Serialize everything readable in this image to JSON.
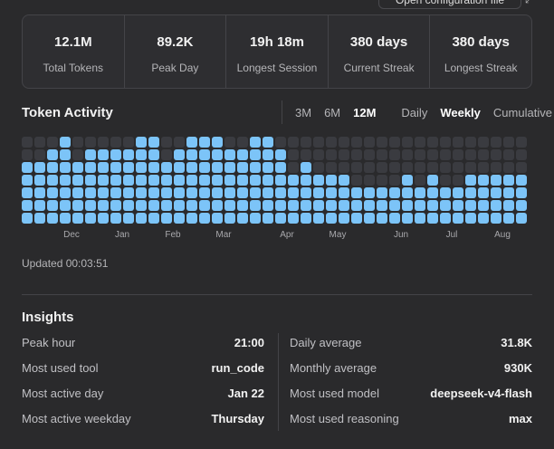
{
  "header": {
    "button": "Open configuration file"
  },
  "stats": [
    {
      "value": "12.1M",
      "label": "Total Tokens"
    },
    {
      "value": "89.2K",
      "label": "Peak Day"
    },
    {
      "value": "19h 18m",
      "label": "Longest Session"
    },
    {
      "value": "380 days",
      "label": "Current Streak"
    },
    {
      "value": "380 days",
      "label": "Longest Streak"
    }
  ],
  "activity": {
    "title": "Token Activity",
    "ranges": [
      {
        "label": "3M",
        "selected": false
      },
      {
        "label": "6M",
        "selected": false
      },
      {
        "label": "12M",
        "selected": true
      }
    ],
    "modes": [
      {
        "label": "Daily",
        "selected": false
      },
      {
        "label": "Weekly",
        "selected": true
      },
      {
        "label": "Cumulative",
        "selected": false
      }
    ],
    "updated": "Updated 00:03:51"
  },
  "chart_data": {
    "type": "waffle",
    "categories": [
      null,
      null,
      null,
      "Dec",
      null,
      null,
      null,
      "Jan",
      null,
      null,
      null,
      "Feb",
      null,
      null,
      null,
      "Mar",
      null,
      null,
      null,
      null,
      "Apr",
      null,
      null,
      null,
      "May",
      null,
      null,
      null,
      null,
      "Jun",
      null,
      null,
      null,
      "Jul",
      null,
      null,
      null,
      "Aug",
      null,
      null
    ],
    "values": [
      5,
      5,
      6,
      7,
      5,
      6,
      6,
      6,
      6,
      7,
      7,
      5,
      6,
      7,
      7,
      7,
      6,
      6,
      7,
      7,
      6,
      4,
      5,
      4,
      4,
      4,
      3,
      3,
      3,
      3,
      4,
      3,
      4,
      3,
      3,
      4,
      4,
      4,
      4,
      4
    ],
    "cells": 7,
    "color": "#7cc4f8",
    "empty_color": "#3a3b40"
  },
  "insights": {
    "title": "Insights",
    "left": [
      [
        "Peak hour",
        "21:00"
      ],
      [
        "Most used tool",
        "run_code"
      ],
      [
        "Most active day",
        "Jan 22"
      ],
      [
        "Most active weekday",
        "Thursday"
      ]
    ],
    "right": [
      [
        "Daily average",
        "31.8K"
      ],
      [
        "Monthly average",
        "930K"
      ],
      [
        "Most used model",
        "deepseek-v4-flash"
      ],
      [
        "Most used reasoning",
        "max"
      ]
    ]
  }
}
